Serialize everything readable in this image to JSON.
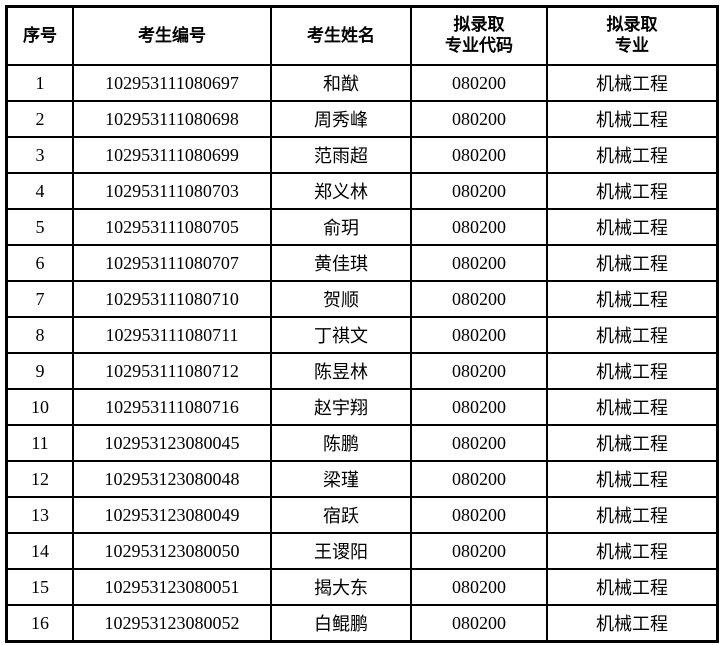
{
  "headers": [
    "序号",
    "考生编号",
    "考生姓名",
    "拟录取\n专业代码",
    "拟录取\n专业"
  ],
  "rows": [
    [
      "1",
      "102953111080697",
      "和猷",
      "080200",
      "机械工程"
    ],
    [
      "2",
      "102953111080698",
      "周秀峰",
      "080200",
      "机械工程"
    ],
    [
      "3",
      "102953111080699",
      "范雨超",
      "080200",
      "机械工程"
    ],
    [
      "4",
      "102953111080703",
      "郑义林",
      "080200",
      "机械工程"
    ],
    [
      "5",
      "102953111080705",
      "俞玥",
      "080200",
      "机械工程"
    ],
    [
      "6",
      "102953111080707",
      "黄佳琪",
      "080200",
      "机械工程"
    ],
    [
      "7",
      "102953111080710",
      "贺顺",
      "080200",
      "机械工程"
    ],
    [
      "8",
      "102953111080711",
      "丁祺文",
      "080200",
      "机械工程"
    ],
    [
      "9",
      "102953111080712",
      "陈昱林",
      "080200",
      "机械工程"
    ],
    [
      "10",
      "102953111080716",
      "赵宇翔",
      "080200",
      "机械工程"
    ],
    [
      "11",
      "102953123080045",
      "陈鹏",
      "080200",
      "机械工程"
    ],
    [
      "12",
      "102953123080048",
      "梁瑾",
      "080200",
      "机械工程"
    ],
    [
      "13",
      "102953123080049",
      "宿跃",
      "080200",
      "机械工程"
    ],
    [
      "14",
      "102953123080050",
      "王谡阳",
      "080200",
      "机械工程"
    ],
    [
      "15",
      "102953123080051",
      "揭大东",
      "080200",
      "机械工程"
    ],
    [
      "16",
      "102953123080052",
      "白鲲鹏",
      "080200",
      "机械工程"
    ]
  ]
}
